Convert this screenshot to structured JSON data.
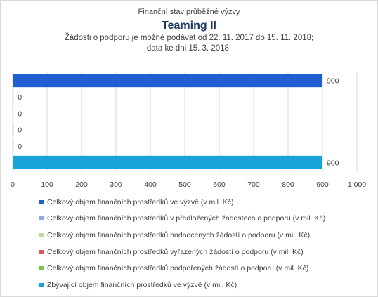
{
  "title": {
    "line1": "Finanční stav průběžné výzvy",
    "line2": "Teaming II",
    "line3": "Žádosti o podporu je možné  podávat od 22. 11. 2017 do 15. 11. 2018;",
    "line4": "data ke dni 15. 3. 2018."
  },
  "chart_data": {
    "type": "bar",
    "orientation": "horizontal",
    "xlim": [
      0,
      1000
    ],
    "x_ticks": [
      0,
      100,
      200,
      300,
      400,
      500,
      600,
      700,
      800,
      900,
      1000
    ],
    "x_tick_labels": [
      "0",
      "100",
      "200",
      "300",
      "400",
      "500",
      "600",
      "700",
      "800",
      "900",
      "1 000"
    ],
    "grid": "vertical",
    "legend_position": "bottom",
    "series": [
      {
        "name": "Celkový objem finančních prostředků ve výzvě (v mil. Kč)",
        "value": 900,
        "label": "900",
        "color": "#1f5fd1"
      },
      {
        "name": "Celkový objem finančních prostředků v předložených žádostech o podporu (v mil. Kč)",
        "value": 0,
        "label": "0",
        "color": "#8fa9e0"
      },
      {
        "name": "Celkový objem finančních prostředků hodnocených žádostí o podporu (v mil. Kč)",
        "value": 0,
        "label": "0",
        "color": "#b9dca2"
      },
      {
        "name": "Celkový objem finančních prostředků vyřazených žádostí o podporu (v mil. Kč)",
        "value": 0,
        "label": "0",
        "color": "#e0555a"
      },
      {
        "name": "Celkový objem finančních prostředků podpořených žádostí o podporu (v mil. Kč)",
        "value": 0,
        "label": "0",
        "color": "#7fc24a"
      },
      {
        "name": "Zbývající objem finančních prostředků ve výzvě (v mil. Kč)",
        "value": 900,
        "label": "900",
        "color": "#17a3d8"
      }
    ]
  }
}
